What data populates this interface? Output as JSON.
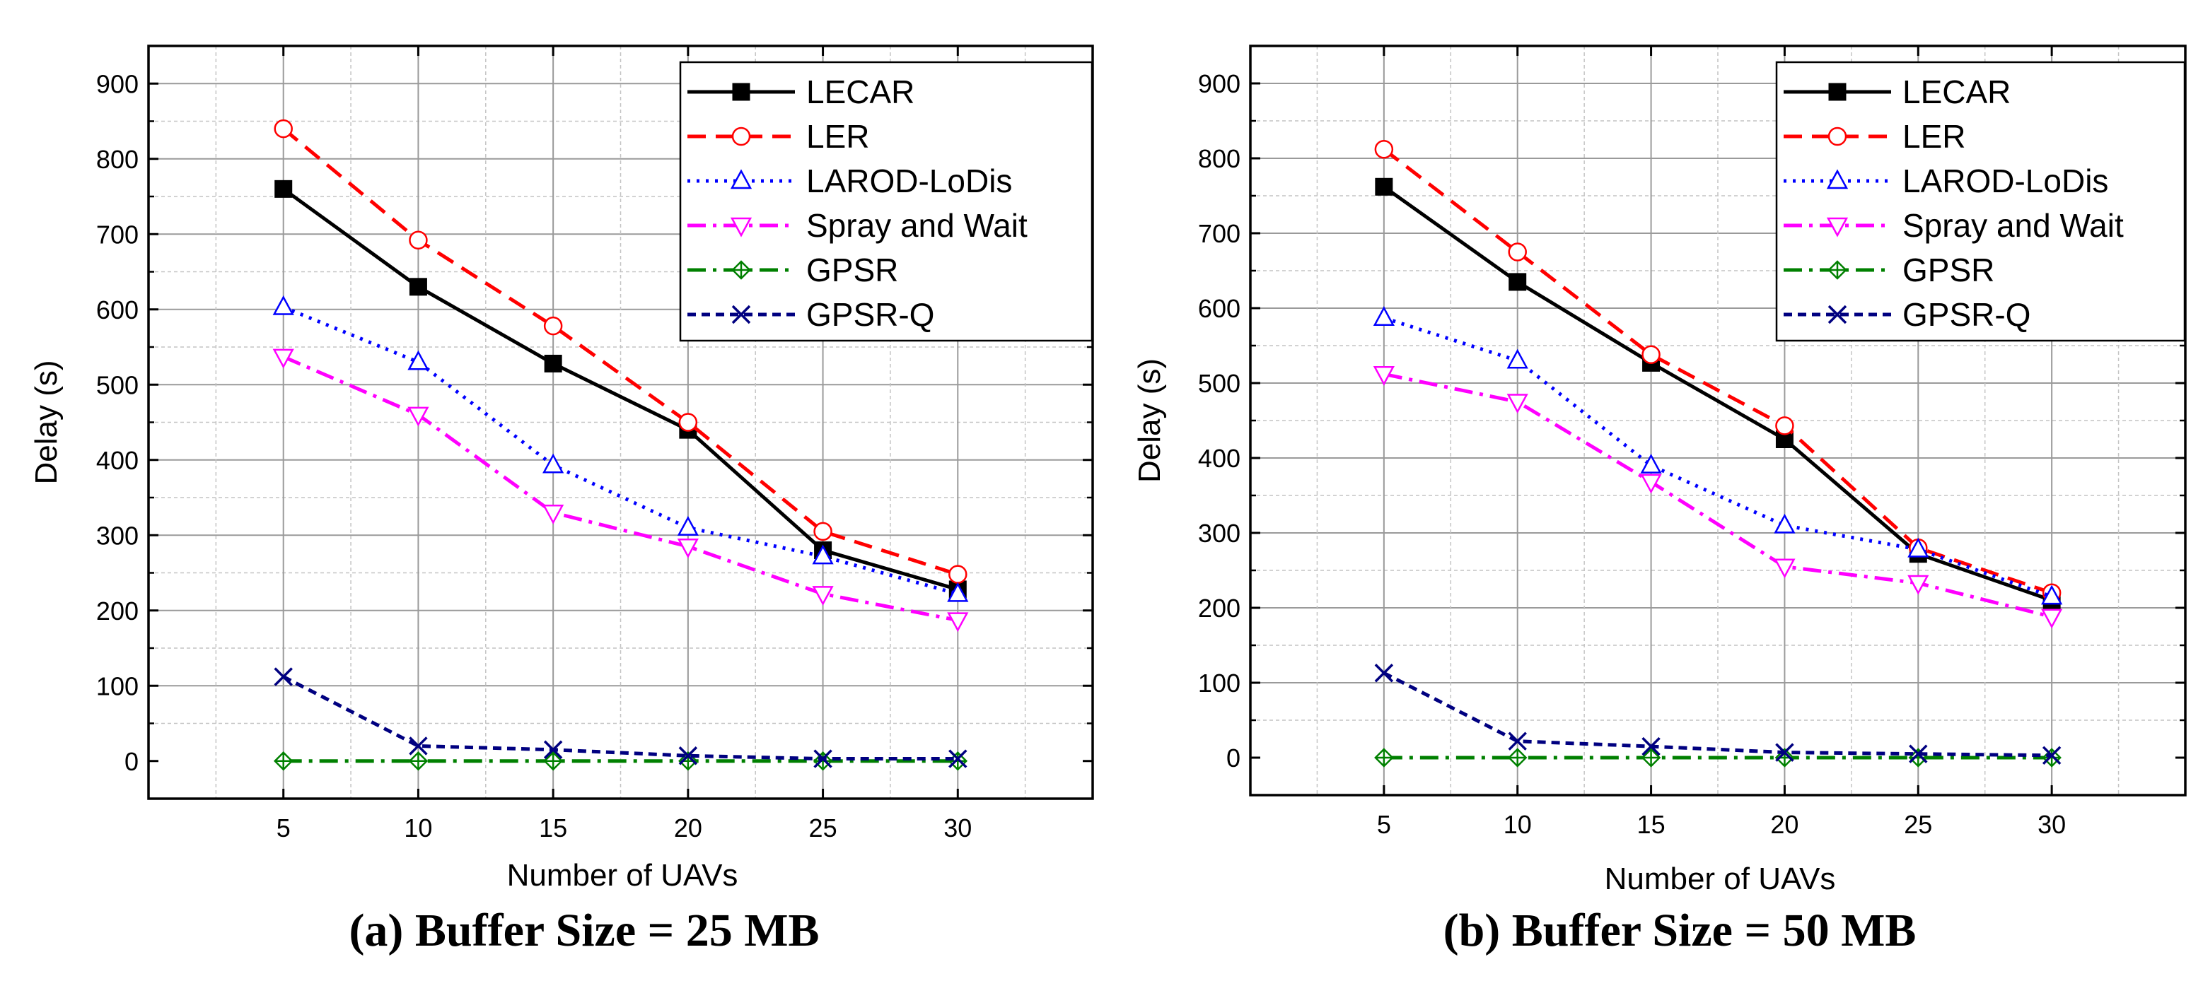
{
  "chart_data": [
    {
      "type": "line",
      "caption": "(a) Buffer Size = 25 MB",
      "xlabel": "Number of UAVs",
      "ylabel": "Delay (s)",
      "x": [
        5,
        10,
        15,
        20,
        25,
        30
      ],
      "xlim": [
        0,
        35
      ],
      "ylim": [
        -50,
        950
      ],
      "xticks": [
        "5",
        "10",
        "15",
        "20",
        "25",
        "30"
      ],
      "yticks": [
        "0",
        "100",
        "200",
        "300",
        "400",
        "500",
        "600",
        "700",
        "800",
        "900"
      ],
      "grid": true,
      "legend": "top-right",
      "series": [
        {
          "name": "LECAR",
          "values": [
            760,
            630,
            528,
            440,
            280,
            228
          ]
        },
        {
          "name": "LER",
          "values": [
            840,
            692,
            578,
            450,
            305,
            248
          ]
        },
        {
          "name": "LAROD-LoDis",
          "values": [
            603,
            530,
            393,
            310,
            272,
            222
          ]
        },
        {
          "name": "Spray and Wait",
          "values": [
            537,
            460,
            330,
            285,
            222,
            187
          ]
        },
        {
          "name": "GPSR",
          "values": [
            0,
            0,
            0,
            0,
            0,
            0
          ]
        },
        {
          "name": "GPSR-Q",
          "values": [
            112,
            20,
            15,
            7,
            3,
            3
          ]
        }
      ]
    },
    {
      "type": "line",
      "caption": "(b) Buffer Size = 50 MB",
      "xlabel": "Number of UAVs",
      "ylabel": "Delay (s)",
      "x": [
        5,
        10,
        15,
        20,
        25,
        30
      ],
      "xlim": [
        0,
        35
      ],
      "ylim": [
        -50,
        950
      ],
      "xticks": [
        "5",
        "10",
        "15",
        "20",
        "25",
        "30"
      ],
      "yticks": [
        "0",
        "100",
        "200",
        "300",
        "400",
        "500",
        "600",
        "700",
        "800",
        "900"
      ],
      "grid": true,
      "legend": "top-right",
      "series": [
        {
          "name": "LECAR",
          "values": [
            762,
            635,
            527,
            425,
            272,
            210
          ]
        },
        {
          "name": "LER",
          "values": [
            812,
            675,
            538,
            443,
            280,
            220
          ]
        },
        {
          "name": "LAROD-LoDis",
          "values": [
            587,
            530,
            390,
            310,
            278,
            215
          ]
        },
        {
          "name": "Spray and Wait",
          "values": [
            512,
            475,
            368,
            255,
            233,
            188
          ]
        },
        {
          "name": "GPSR",
          "values": [
            0,
            0,
            0,
            0,
            0,
            0
          ]
        },
        {
          "name": "GPSR-Q",
          "values": [
            113,
            22,
            15,
            7,
            5,
            3
          ]
        }
      ]
    }
  ],
  "styles": {
    "LECAR": {
      "color": "#000000",
      "marker": "square-filled",
      "dash": "solid"
    },
    "LER": {
      "color": "#ff0000",
      "marker": "circle-open",
      "dash": "dashed"
    },
    "LAROD-LoDis": {
      "color": "#0000ff",
      "marker": "triangle-up-open",
      "dash": "dotted"
    },
    "Spray and Wait": {
      "color": "#ff00ff",
      "marker": "triangle-down-open",
      "dash": "dash-dot"
    },
    "GPSR": {
      "color": "#008000",
      "marker": "diamond-cross-open",
      "dash": "dash-dot"
    },
    "GPSR-Q": {
      "color": "#000080",
      "marker": "x-cross",
      "dash": "short-dash"
    }
  }
}
